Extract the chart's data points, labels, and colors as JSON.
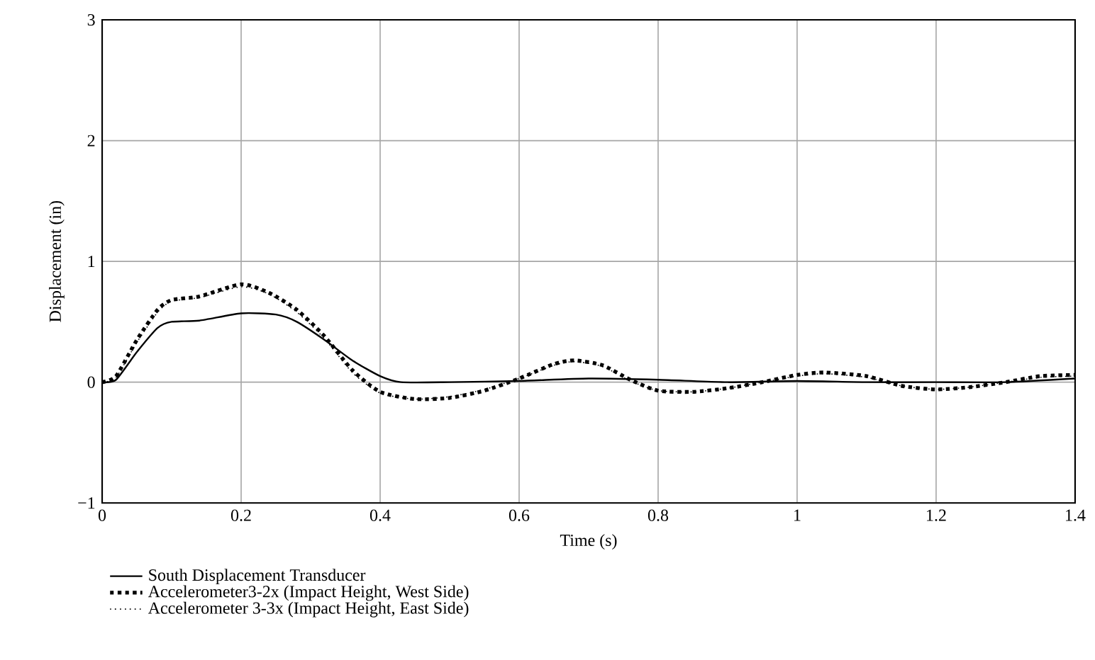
{
  "chart_data": {
    "type": "line",
    "xlabel": "Time (s)",
    "ylabel": "Displacement (in)",
    "xlim": [
      0,
      1.4
    ],
    "ylim": [
      -1,
      3
    ],
    "xticks": [
      0,
      0.2,
      0.4,
      0.6,
      0.8,
      1,
      1.2,
      1.4
    ],
    "yticks": [
      {
        "value": -1,
        "label": "−1"
      },
      0,
      1,
      2,
      3
    ],
    "grid": true,
    "legend": "bottom",
    "marker": "none",
    "series": [
      {
        "name": "South Displacement Transducer",
        "color": "#000000",
        "line_style": "solid",
        "x": [
          0,
          0.02,
          0.05,
          0.08,
          0.1,
          0.14,
          0.2,
          0.25,
          0.28,
          0.32,
          0.36,
          0.4,
          0.43,
          0.5,
          0.6,
          0.7,
          0.8,
          0.9,
          1.0,
          1.1,
          1.2,
          1.3,
          1.4
        ],
        "values": [
          0,
          0.02,
          0.25,
          0.45,
          0.5,
          0.51,
          0.57,
          0.56,
          0.5,
          0.35,
          0.18,
          0.05,
          0.0,
          0.0,
          0.01,
          0.03,
          0.02,
          0.0,
          0.01,
          0.0,
          0.0,
          0.0,
          0.03
        ]
      },
      {
        "name": "Accelerometer3-2x (Impact Height, West Side)",
        "color": "#000000",
        "line_style": "dotted",
        "x": [
          0,
          0.02,
          0.05,
          0.08,
          0.1,
          0.14,
          0.2,
          0.24,
          0.28,
          0.32,
          0.36,
          0.4,
          0.45,
          0.5,
          0.55,
          0.6,
          0.65,
          0.68,
          0.72,
          0.76,
          0.8,
          0.85,
          0.9,
          0.95,
          1.0,
          1.04,
          1.1,
          1.15,
          1.2,
          1.25,
          1.3,
          1.35,
          1.4
        ],
        "values": [
          0,
          0.05,
          0.35,
          0.6,
          0.68,
          0.71,
          0.81,
          0.74,
          0.6,
          0.38,
          0.1,
          -0.08,
          -0.14,
          -0.13,
          -0.07,
          0.03,
          0.15,
          0.18,
          0.14,
          0.02,
          -0.07,
          -0.08,
          -0.05,
          0.0,
          0.06,
          0.08,
          0.05,
          -0.03,
          -0.06,
          -0.04,
          0.0,
          0.05,
          0.06
        ]
      },
      {
        "name": "Accelerometer 3-3x (Impact Height, East Side)",
        "color": "#000000",
        "line_style": "dotted",
        "x": [
          0,
          0.02,
          0.05,
          0.08,
          0.1,
          0.14,
          0.2,
          0.24,
          0.28,
          0.32,
          0.36,
          0.4,
          0.45,
          0.5,
          0.55,
          0.6,
          0.65,
          0.68,
          0.72,
          0.76,
          0.8,
          0.85,
          0.9,
          0.95,
          1.0,
          1.04,
          1.1,
          1.15,
          1.2,
          1.25,
          1.3,
          1.35,
          1.4
        ],
        "values": [
          0,
          0.04,
          0.33,
          0.58,
          0.67,
          0.7,
          0.79,
          0.73,
          0.58,
          0.36,
          0.08,
          -0.09,
          -0.14,
          -0.12,
          -0.06,
          0.03,
          0.14,
          0.17,
          0.13,
          0.01,
          -0.07,
          -0.08,
          -0.05,
          0.0,
          0.05,
          0.07,
          0.04,
          -0.03,
          -0.06,
          -0.04,
          0.0,
          0.04,
          0.05
        ]
      }
    ]
  }
}
